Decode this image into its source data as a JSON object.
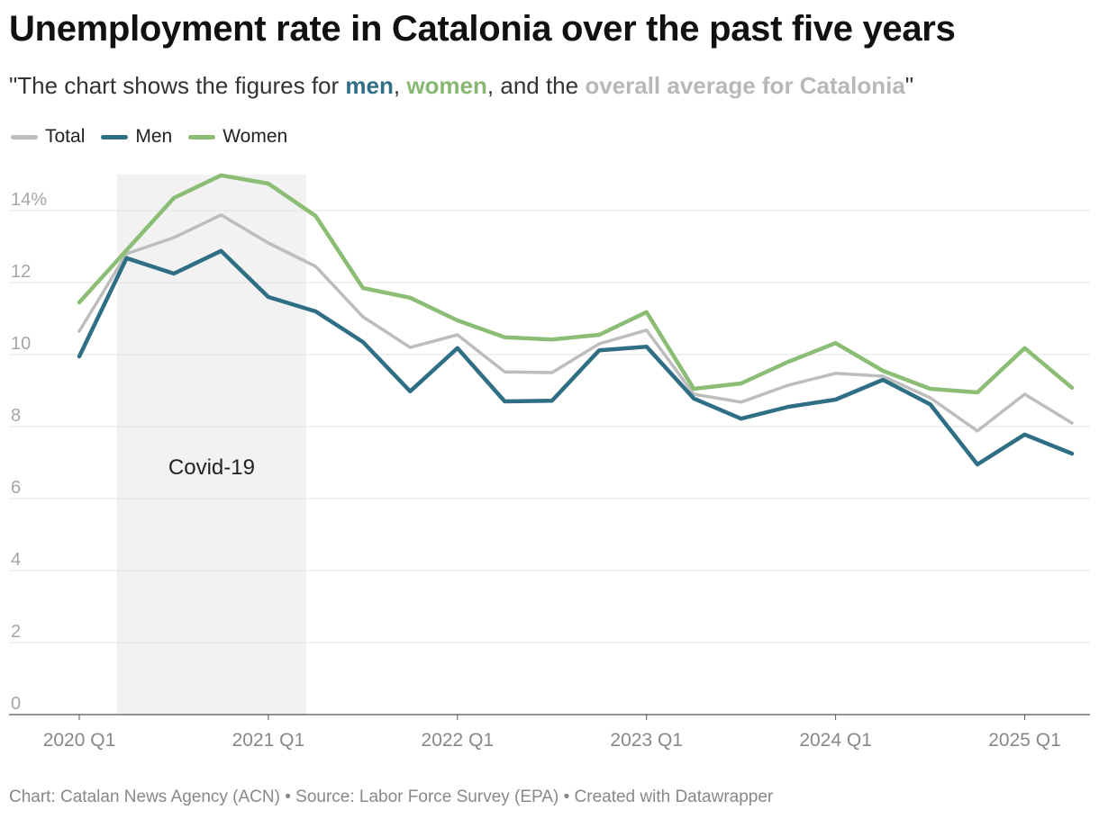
{
  "header": {
    "title": "Unemployment rate in Catalonia over the past five years",
    "subtitle_prefix": "\"The chart shows the figures for ",
    "subtitle_men": "men",
    "subtitle_sep1": ", ",
    "subtitle_women": "women",
    "subtitle_sep2": ", and the ",
    "subtitle_total": "overall average for Catalonia",
    "subtitle_suffix": "\""
  },
  "colors": {
    "total": "#bdbdbd",
    "men": "#2f6f85",
    "women": "#8bbd75",
    "shade": "#f2f2f2",
    "grid": "#e3e3e3",
    "axis_text": "#a6a6a6"
  },
  "footer": {
    "text": "Chart: Catalan News Agency (ACN) • Source: Labor Force Survey (EPA) • Created with Datawrapper"
  },
  "chart_data": {
    "type": "line",
    "title": "Unemployment rate in Catalonia over the past five years",
    "xlabel": "",
    "ylabel": "",
    "ylim": [
      0,
      15
    ],
    "yticks": [
      0,
      2,
      4,
      6,
      8,
      10,
      12,
      14
    ],
    "ytick_labels": [
      "0",
      "2",
      "4",
      "6",
      "8",
      "10",
      "12",
      "14%"
    ],
    "xtick_labels": [
      "2020 Q1",
      "2021 Q1",
      "2022 Q1",
      "2023 Q1",
      "2024 Q1",
      "2025 Q1"
    ],
    "xtick_indices": [
      0,
      4,
      8,
      12,
      16,
      20
    ],
    "categories": [
      "2020 Q1",
      "2020 Q2",
      "2020 Q3",
      "2020 Q4",
      "2021 Q1",
      "2021 Q2",
      "2021 Q3",
      "2021 Q4",
      "2022 Q1",
      "2022 Q2",
      "2022 Q3",
      "2022 Q4",
      "2023 Q1",
      "2023 Q2",
      "2023 Q3",
      "2023 Q4",
      "2024 Q1",
      "2024 Q2",
      "2024 Q3",
      "2024 Q4",
      "2025 Q1",
      "2025 Q2"
    ],
    "series": [
      {
        "name": "Total",
        "key": "total",
        "values": [
          10.65,
          12.8,
          13.25,
          13.88,
          13.1,
          12.45,
          11.05,
          10.2,
          10.55,
          9.52,
          9.5,
          10.3,
          10.68,
          8.9,
          8.68,
          9.15,
          9.48,
          9.4,
          8.8,
          7.88,
          8.9,
          8.1
        ]
      },
      {
        "name": "Men",
        "key": "men",
        "values": [
          9.95,
          12.68,
          12.25,
          12.88,
          11.6,
          11.2,
          10.35,
          8.98,
          10.18,
          8.7,
          8.72,
          10.12,
          10.22,
          8.78,
          8.22,
          8.55,
          8.75,
          9.3,
          8.62,
          6.95,
          7.78,
          7.25
        ]
      },
      {
        "name": "Women",
        "key": "women",
        "values": [
          11.45,
          12.9,
          14.35,
          14.98,
          14.75,
          13.85,
          11.85,
          11.58,
          10.95,
          10.48,
          10.42,
          10.55,
          11.18,
          9.05,
          9.2,
          9.8,
          10.32,
          9.55,
          9.05,
          8.95,
          10.18,
          9.08
        ]
      }
    ],
    "legend": [
      "Total",
      "Men",
      "Women"
    ],
    "legend_position": "top-left",
    "annotations": [
      {
        "label": "Covid-19",
        "from_index": 0.8,
        "to_index": 4.8
      }
    ]
  }
}
